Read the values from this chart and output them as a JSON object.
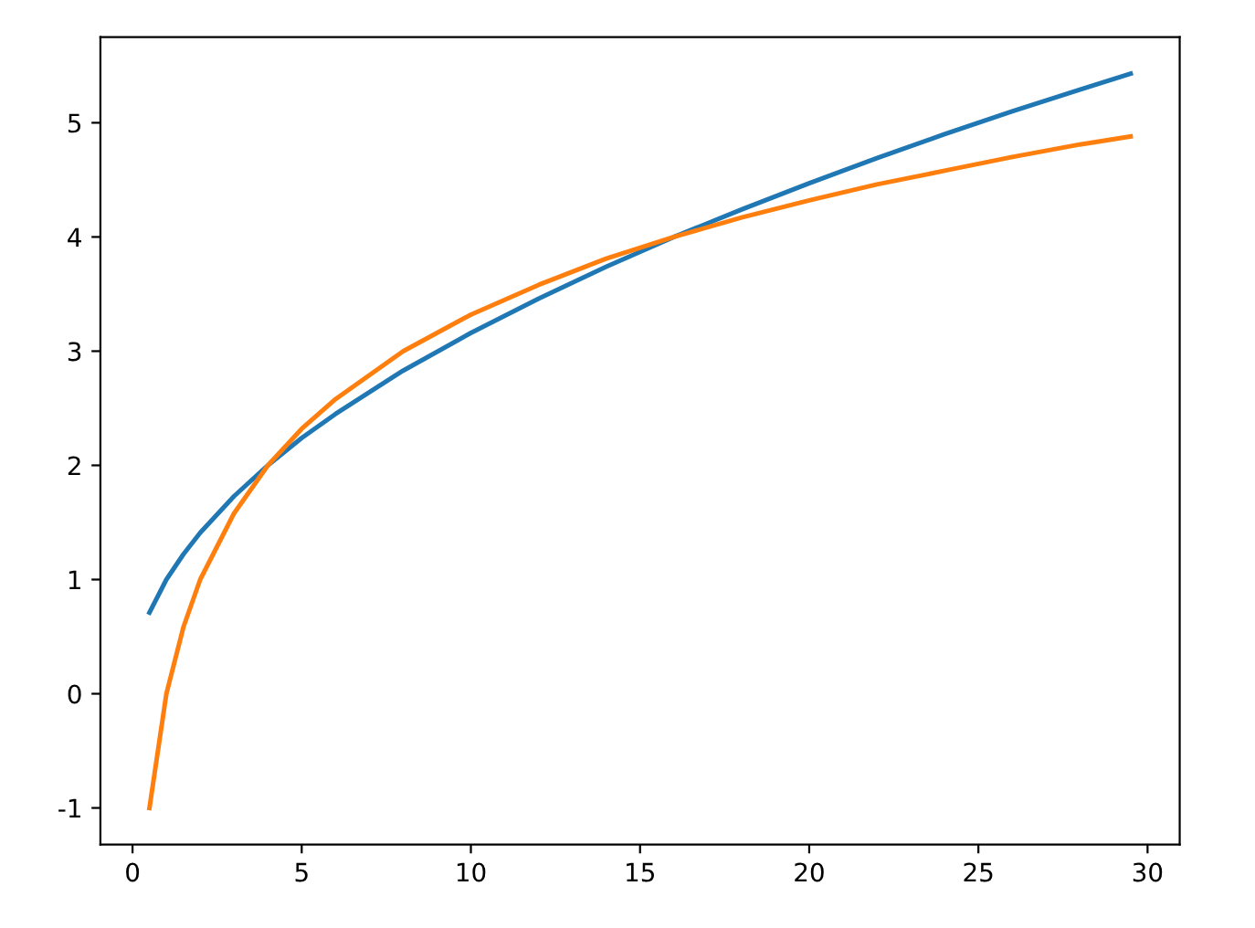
{
  "chart_data": {
    "type": "line",
    "x": [
      0.5,
      1,
      1.5,
      2,
      3,
      4,
      5,
      6,
      8,
      10,
      12,
      14,
      16,
      18,
      20,
      22,
      24,
      26,
      28,
      29.5
    ],
    "series": [
      {
        "color": "#1f77b4",
        "values": [
          0.71,
          1,
          1.22,
          1.41,
          1.73,
          2,
          2.24,
          2.45,
          2.83,
          3.16,
          3.46,
          3.74,
          4,
          4.24,
          4.47,
          4.69,
          4.9,
          5.1,
          5.29,
          5.43
        ]
      },
      {
        "color": "#ff7f0e",
        "values": [
          -1,
          0,
          0.58,
          1,
          1.58,
          2,
          2.32,
          2.58,
          3,
          3.32,
          3.58,
          3.81,
          4,
          4.17,
          4.32,
          4.46,
          4.58,
          4.7,
          4.81,
          4.88
        ]
      }
    ],
    "xlim": [
      -0.95,
      30.95
    ],
    "ylim": [
      -1.32,
      5.75
    ],
    "xticks": [
      0,
      5,
      10,
      15,
      20,
      25,
      30
    ],
    "yticks": [
      -1,
      0,
      1,
      2,
      3,
      4,
      5
    ],
    "grid": false,
    "legend": false
  }
}
